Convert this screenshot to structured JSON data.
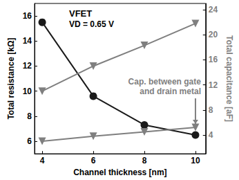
{
  "chart_data": {
    "type": "line",
    "x_label": "Channel thickness [nm]",
    "y_label": "Total resistance [kΩ]",
    "y2_label": "Total capacitance [aF]",
    "annotations": [
      "VFET",
      "VD = 0.65 V",
      "Cap. between gate\nand drain metal"
    ],
    "x": [
      4,
      6,
      8,
      10
    ],
    "xlim": [
      3.7,
      10.4
    ],
    "xticks": [
      4,
      6,
      8,
      10
    ],
    "ylim": [
      5,
      17
    ],
    "yticks": [
      6,
      8,
      10,
      12,
      14,
      16
    ],
    "y2lim": [
      1,
      25
    ],
    "y2ticks": [
      4,
      8,
      12,
      16,
      20,
      24
    ],
    "grid": false,
    "series": [
      {
        "color": "#1a1a1a",
        "marker": "circle",
        "values": [
          15.5,
          9.6,
          7.3,
          6.5
        ]
      },
      {
        "color": "#7f7f7f",
        "marker": "triangle-down",
        "axis": "y2",
        "values": [
          11,
          15,
          18.3,
          21.8
        ]
      },
      {
        "color": "#7f7f7f",
        "marker": "triangle-down",
        "axis": "y2",
        "values": [
          3.0,
          3.8,
          4.5,
          5.2
        ]
      }
    ]
  }
}
